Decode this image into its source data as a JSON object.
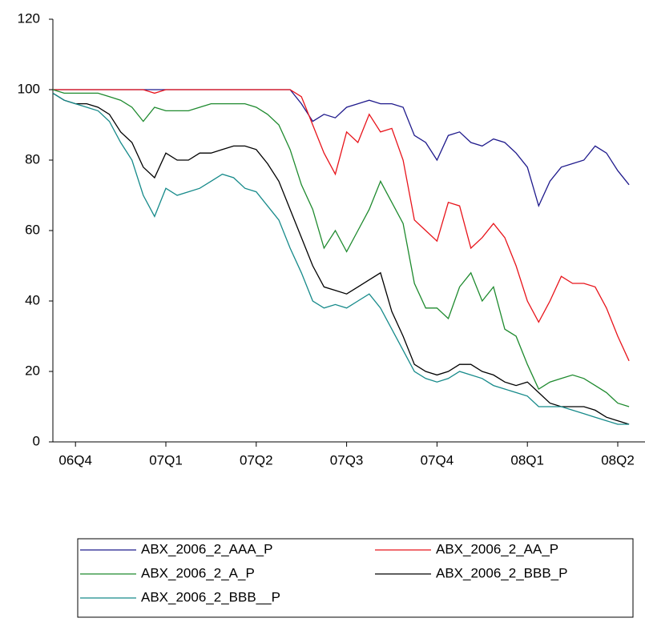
{
  "chart_data": {
    "type": "line",
    "categories": [
      null,
      null,
      "06Q4",
      null,
      null,
      null,
      null,
      null,
      null,
      null,
      "07Q1",
      null,
      null,
      null,
      null,
      null,
      null,
      null,
      "07Q2",
      null,
      null,
      null,
      null,
      null,
      null,
      null,
      "07Q3",
      null,
      null,
      null,
      null,
      null,
      null,
      null,
      "07Q4",
      null,
      null,
      null,
      null,
      null,
      null,
      null,
      "08Q1",
      null,
      null,
      null,
      null,
      null,
      null,
      null,
      "08Q2",
      null
    ],
    "ylim": [
      0,
      120
    ],
    "yticks": [
      0,
      20,
      40,
      60,
      80,
      100,
      120
    ],
    "series": [
      {
        "name": "ABX_2006_2_AAA_P",
        "color": "#1f1a8c",
        "values": [
          100,
          100,
          100,
          100,
          100,
          100,
          100,
          100,
          100,
          100,
          100,
          100,
          100,
          100,
          100,
          100,
          100,
          100,
          100,
          100,
          100,
          100,
          96,
          91,
          93,
          92,
          95,
          96,
          97,
          96,
          96,
          95,
          87,
          85,
          80,
          87,
          88,
          85,
          84,
          86,
          85,
          82,
          78,
          67,
          74,
          78,
          79,
          80,
          84,
          82,
          77,
          73
        ]
      },
      {
        "name": "ABX_2006_2_AA_P",
        "color": "#e8141b",
        "values": [
          100,
          100,
          100,
          100,
          100,
          100,
          100,
          100,
          100,
          99,
          100,
          100,
          100,
          100,
          100,
          100,
          100,
          100,
          100,
          100,
          100,
          100,
          98,
          90,
          82,
          76,
          88,
          85,
          93,
          88,
          89,
          80,
          63,
          60,
          57,
          68,
          67,
          55,
          58,
          62,
          58,
          50,
          40,
          34,
          40,
          47,
          45,
          45,
          44,
          38,
          30,
          23
        ]
      },
      {
        "name": "ABX_2006_2_A_P",
        "color": "#1e8a2e",
        "values": [
          100,
          99,
          99,
          99,
          99,
          98,
          97,
          95,
          91,
          95,
          94,
          94,
          94,
          95,
          96,
          96,
          96,
          96,
          95,
          93,
          90,
          83,
          73,
          66,
          55,
          60,
          54,
          60,
          66,
          74,
          68,
          62,
          45,
          38,
          38,
          35,
          44,
          48,
          40,
          44,
          32,
          30,
          22,
          15,
          17,
          18,
          19,
          18,
          16,
          14,
          11,
          10
        ]
      },
      {
        "name": "ABX_2006_2_BBB_P",
        "color": "#000000",
        "values": [
          99,
          97,
          96,
          96,
          95,
          93,
          88,
          85,
          78,
          75,
          82,
          80,
          80,
          82,
          82,
          83,
          84,
          84,
          83,
          79,
          74,
          66,
          58,
          50,
          44,
          43,
          42,
          44,
          46,
          48,
          37,
          30,
          22,
          20,
          19,
          20,
          22,
          22,
          20,
          19,
          17,
          16,
          17,
          14,
          11,
          10,
          10,
          10,
          9,
          7,
          6,
          5
        ]
      },
      {
        "name": "ABX_2006_2_BBB__P",
        "color": "#168a8a",
        "values": [
          99,
          97,
          96,
          95,
          94,
          91,
          85,
          80,
          70,
          64,
          72,
          70,
          71,
          72,
          74,
          76,
          75,
          72,
          71,
          67,
          63,
          55,
          48,
          40,
          38,
          39,
          38,
          40,
          42,
          38,
          32,
          26,
          20,
          18,
          17,
          18,
          20,
          19,
          18,
          16,
          15,
          14,
          13,
          10,
          10,
          10,
          9,
          8,
          7,
          6,
          5,
          5
        ]
      }
    ]
  }
}
